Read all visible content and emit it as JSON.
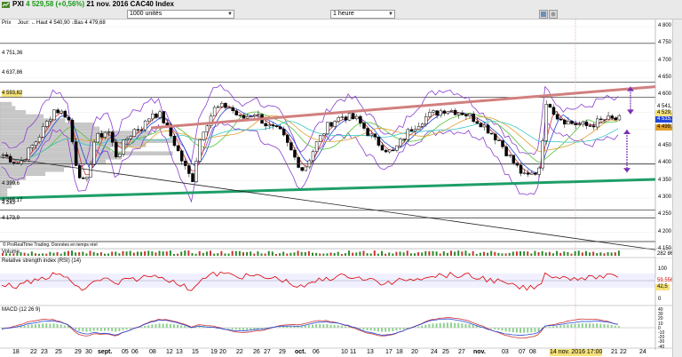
{
  "header": {
    "instrument_title": "PXI",
    "change": "4 529,58 (+0,56%)",
    "date_name": "21 nov. 2016 CAC40 Index",
    "quantity_select": "1000 unités",
    "period_select": "1 heure"
  },
  "price_panel": {
    "prix_label": "Prix",
    "ohlc_text": "Jour: ←Haut 4 540,90 ↓Bas 4 479,68",
    "credit": "© ProRealTime Trading. Données en temps réel",
    "left_levels": [
      "4 751,36",
      "4 637,86",
      "4 593,82",
      "4 399,6",
      "4 265,17",
      "4 243",
      "4 173,9"
    ],
    "axis_ticks": [
      "4 800",
      "4 750",
      "4 700",
      "4 650",
      "4 600",
      "4 550",
      "4 500",
      "4 450",
      "4 400",
      "4 350",
      "4 300",
      "4 250",
      "4 200",
      "4 150"
    ],
    "badges": [
      "4 541,72",
      "4 529,58",
      "4 515,97",
      "4 499,75"
    ],
    "colors": {
      "resistance": "#d17f7f",
      "support": "#1e9e68",
      "bollinger": "#8a3fcf",
      "ma_blue": "#2446d8",
      "ma_green": "#54c23a",
      "ma_orange": "#e0a030",
      "ma_cyan": "#35c7c7"
    }
  },
  "volume_panel": {
    "label": "Volume",
    "value": "282 860"
  },
  "rsi_panel": {
    "label": "Relative strength index (RSI) (14)",
    "ticks": [
      "100",
      "0"
    ],
    "badges": [
      "59,556",
      "42,5"
    ]
  },
  "macd_panel": {
    "label": "MACD (12 26 9)",
    "ticks": [
      "40",
      "30",
      "20",
      "10",
      "0",
      "-10",
      "-20",
      "-30",
      "-40"
    ]
  },
  "x_axis": {
    "labels": [
      "18",
      "22",
      "23",
      "25",
      "29",
      "30",
      "sept.",
      "05",
      "06",
      "08",
      "12",
      "13",
      "15",
      "19",
      "20",
      "22",
      "26",
      "27",
      "29",
      "oct.",
      "06",
      "10",
      "11",
      "13",
      "17",
      "18",
      "20",
      "24",
      "25",
      "27",
      "nov.",
      "03",
      "07",
      "08",
      "10",
      "21",
      "22",
      "24"
    ],
    "cursor_label": "14 nov. 2016 17:00"
  }
}
